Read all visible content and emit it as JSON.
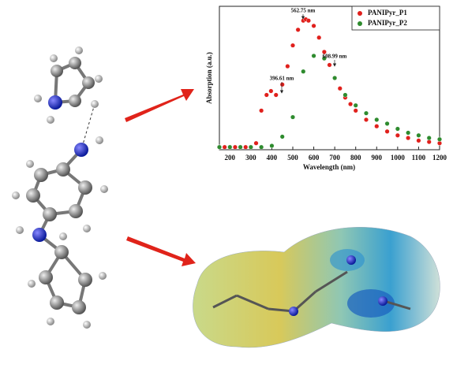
{
  "chart_data": {
    "type": "scatter",
    "x_label": "Wavelength (nm)",
    "y_label": "Absorption (a.u.)",
    "xlim": [
      150,
      1200
    ],
    "ylim": [
      0,
      1.1
    ],
    "xticks": [
      200,
      300,
      400,
      500,
      600,
      700,
      800,
      900,
      1000,
      1100,
      1200
    ],
    "legend": "upper right",
    "annotations": [
      "396.61 nm",
      "562.75 nm",
      "608.99 nm"
    ],
    "series": [
      {
        "name": "PANIPyr_P1",
        "color": "#e0201c",
        "x": [
          150,
          175,
          200,
          225,
          250,
          275,
          300,
          325,
          350,
          375,
          396,
          420,
          450,
          475,
          500,
          525,
          550,
          562,
          575,
          600,
          625,
          650,
          675,
          700,
          725,
          750,
          775,
          800,
          850,
          900,
          950,
          1000,
          1050,
          1100,
          1150,
          1200
        ],
        "values": [
          0.02,
          0.02,
          0.02,
          0.02,
          0.02,
          0.02,
          0.02,
          0.05,
          0.3,
          0.42,
          0.45,
          0.42,
          0.5,
          0.64,
          0.8,
          0.92,
          0.99,
          1.0,
          0.99,
          0.95,
          0.86,
          0.75,
          0.65,
          0.55,
          0.47,
          0.4,
          0.35,
          0.3,
          0.23,
          0.18,
          0.14,
          0.11,
          0.09,
          0.07,
          0.06,
          0.05
        ]
      },
      {
        "name": "PANIPyr_P2",
        "color": "#2e8b2e",
        "x": [
          150,
          200,
          250,
          300,
          350,
          400,
          450,
          500,
          550,
          600,
          650,
          700,
          750,
          800,
          850,
          900,
          950,
          1000,
          1050,
          1100,
          1150,
          1200
        ],
        "values": [
          0.02,
          0.02,
          0.02,
          0.02,
          0.02,
          0.03,
          0.1,
          0.25,
          0.6,
          0.72,
          0.7,
          0.55,
          0.42,
          0.34,
          0.28,
          0.23,
          0.2,
          0.16,
          0.13,
          0.11,
          0.09,
          0.08
        ]
      }
    ]
  }
}
